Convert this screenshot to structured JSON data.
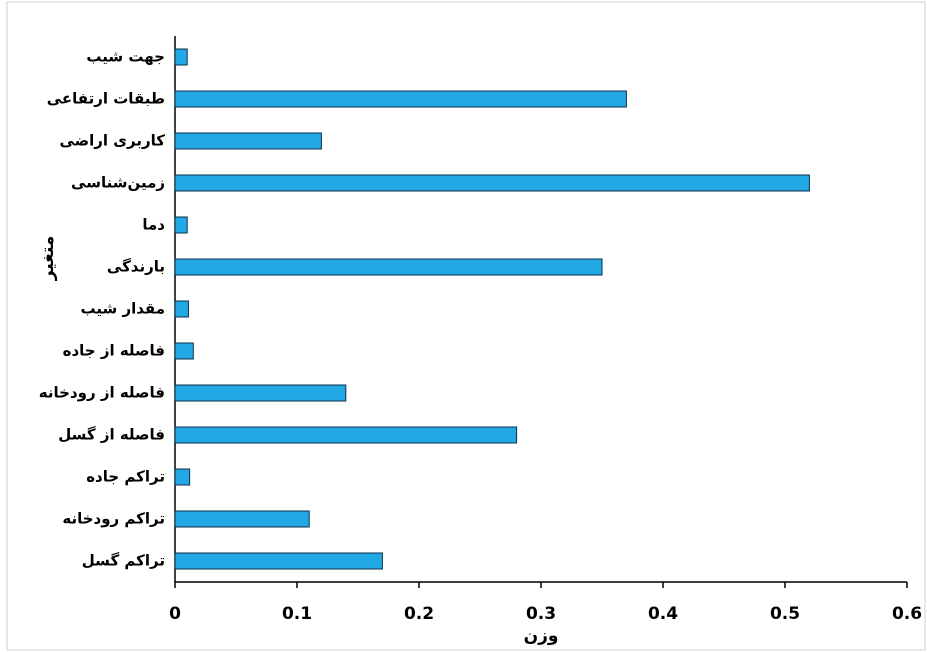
{
  "chart_data": {
    "type": "hbar",
    "x_label": "وزن",
    "y_label": "متغیر",
    "categories": [
      "جهت شیب",
      "طبقات ارتفاعی",
      "کاربری اراضی",
      "زمین‌شناسی",
      "دما",
      "بارندگی",
      "مقدار شیب",
      "فاصله از جاده",
      "فاصله از رودخانه",
      "فاصله از گسل",
      "تراکم جاده",
      "تراکم رودخانه",
      "تراکم گسل"
    ],
    "values": [
      0.01,
      0.37,
      0.12,
      0.52,
      0.01,
      0.35,
      0.011,
      0.015,
      0.14,
      0.28,
      0.012,
      0.11,
      0.17
    ],
    "color": "#22a8e4",
    "xlim": [
      0,
      0.6
    ],
    "xticks": [
      0,
      0.1,
      0.2,
      0.3,
      0.4,
      0.5,
      0.6
    ]
  }
}
